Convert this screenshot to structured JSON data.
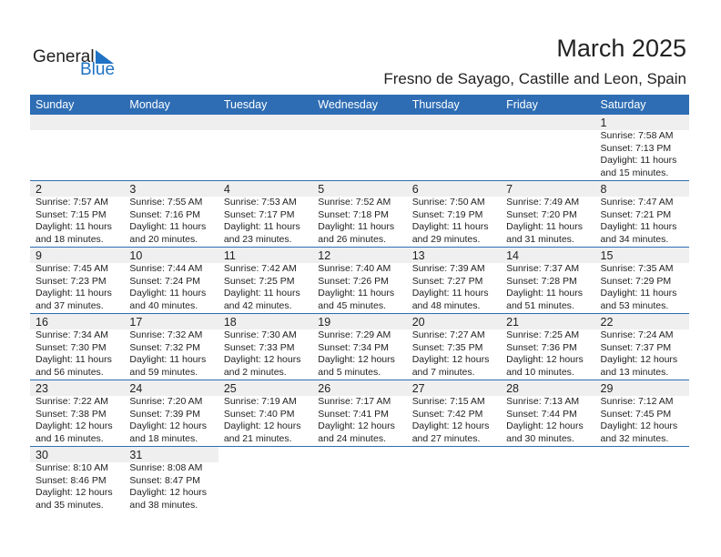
{
  "logo": {
    "text1": "General",
    "text2": "Blue"
  },
  "title": "March 2025",
  "subtitle": "Fresno de Sayago, Castille and Leon, Spain",
  "colors": {
    "header": "#2e6db4",
    "accent": "#1f72c4"
  },
  "days": [
    "Sunday",
    "Monday",
    "Tuesday",
    "Wednesday",
    "Thursday",
    "Friday",
    "Saturday"
  ],
  "weeks": [
    [
      null,
      null,
      null,
      null,
      null,
      null,
      {
        "d": "1",
        "sr": "Sunrise: 7:58 AM",
        "ss": "Sunset: 7:13 PM",
        "dl": "Daylight: 11 hours",
        "dm": "and 15 minutes."
      }
    ],
    [
      {
        "d": "2",
        "sr": "Sunrise: 7:57 AM",
        "ss": "Sunset: 7:15 PM",
        "dl": "Daylight: 11 hours",
        "dm": "and 18 minutes."
      },
      {
        "d": "3",
        "sr": "Sunrise: 7:55 AM",
        "ss": "Sunset: 7:16 PM",
        "dl": "Daylight: 11 hours",
        "dm": "and 20 minutes."
      },
      {
        "d": "4",
        "sr": "Sunrise: 7:53 AM",
        "ss": "Sunset: 7:17 PM",
        "dl": "Daylight: 11 hours",
        "dm": "and 23 minutes."
      },
      {
        "d": "5",
        "sr": "Sunrise: 7:52 AM",
        "ss": "Sunset: 7:18 PM",
        "dl": "Daylight: 11 hours",
        "dm": "and 26 minutes."
      },
      {
        "d": "6",
        "sr": "Sunrise: 7:50 AM",
        "ss": "Sunset: 7:19 PM",
        "dl": "Daylight: 11 hours",
        "dm": "and 29 minutes."
      },
      {
        "d": "7",
        "sr": "Sunrise: 7:49 AM",
        "ss": "Sunset: 7:20 PM",
        "dl": "Daylight: 11 hours",
        "dm": "and 31 minutes."
      },
      {
        "d": "8",
        "sr": "Sunrise: 7:47 AM",
        "ss": "Sunset: 7:21 PM",
        "dl": "Daylight: 11 hours",
        "dm": "and 34 minutes."
      }
    ],
    [
      {
        "d": "9",
        "sr": "Sunrise: 7:45 AM",
        "ss": "Sunset: 7:23 PM",
        "dl": "Daylight: 11 hours",
        "dm": "and 37 minutes."
      },
      {
        "d": "10",
        "sr": "Sunrise: 7:44 AM",
        "ss": "Sunset: 7:24 PM",
        "dl": "Daylight: 11 hours",
        "dm": "and 40 minutes."
      },
      {
        "d": "11",
        "sr": "Sunrise: 7:42 AM",
        "ss": "Sunset: 7:25 PM",
        "dl": "Daylight: 11 hours",
        "dm": "and 42 minutes."
      },
      {
        "d": "12",
        "sr": "Sunrise: 7:40 AM",
        "ss": "Sunset: 7:26 PM",
        "dl": "Daylight: 11 hours",
        "dm": "and 45 minutes."
      },
      {
        "d": "13",
        "sr": "Sunrise: 7:39 AM",
        "ss": "Sunset: 7:27 PM",
        "dl": "Daylight: 11 hours",
        "dm": "and 48 minutes."
      },
      {
        "d": "14",
        "sr": "Sunrise: 7:37 AM",
        "ss": "Sunset: 7:28 PM",
        "dl": "Daylight: 11 hours",
        "dm": "and 51 minutes."
      },
      {
        "d": "15",
        "sr": "Sunrise: 7:35 AM",
        "ss": "Sunset: 7:29 PM",
        "dl": "Daylight: 11 hours",
        "dm": "and 53 minutes."
      }
    ],
    [
      {
        "d": "16",
        "sr": "Sunrise: 7:34 AM",
        "ss": "Sunset: 7:30 PM",
        "dl": "Daylight: 11 hours",
        "dm": "and 56 minutes."
      },
      {
        "d": "17",
        "sr": "Sunrise: 7:32 AM",
        "ss": "Sunset: 7:32 PM",
        "dl": "Daylight: 11 hours",
        "dm": "and 59 minutes."
      },
      {
        "d": "18",
        "sr": "Sunrise: 7:30 AM",
        "ss": "Sunset: 7:33 PM",
        "dl": "Daylight: 12 hours",
        "dm": "and 2 minutes."
      },
      {
        "d": "19",
        "sr": "Sunrise: 7:29 AM",
        "ss": "Sunset: 7:34 PM",
        "dl": "Daylight: 12 hours",
        "dm": "and 5 minutes."
      },
      {
        "d": "20",
        "sr": "Sunrise: 7:27 AM",
        "ss": "Sunset: 7:35 PM",
        "dl": "Daylight: 12 hours",
        "dm": "and 7 minutes."
      },
      {
        "d": "21",
        "sr": "Sunrise: 7:25 AM",
        "ss": "Sunset: 7:36 PM",
        "dl": "Daylight: 12 hours",
        "dm": "and 10 minutes."
      },
      {
        "d": "22",
        "sr": "Sunrise: 7:24 AM",
        "ss": "Sunset: 7:37 PM",
        "dl": "Daylight: 12 hours",
        "dm": "and 13 minutes."
      }
    ],
    [
      {
        "d": "23",
        "sr": "Sunrise: 7:22 AM",
        "ss": "Sunset: 7:38 PM",
        "dl": "Daylight: 12 hours",
        "dm": "and 16 minutes."
      },
      {
        "d": "24",
        "sr": "Sunrise: 7:20 AM",
        "ss": "Sunset: 7:39 PM",
        "dl": "Daylight: 12 hours",
        "dm": "and 18 minutes."
      },
      {
        "d": "25",
        "sr": "Sunrise: 7:19 AM",
        "ss": "Sunset: 7:40 PM",
        "dl": "Daylight: 12 hours",
        "dm": "and 21 minutes."
      },
      {
        "d": "26",
        "sr": "Sunrise: 7:17 AM",
        "ss": "Sunset: 7:41 PM",
        "dl": "Daylight: 12 hours",
        "dm": "and 24 minutes."
      },
      {
        "d": "27",
        "sr": "Sunrise: 7:15 AM",
        "ss": "Sunset: 7:42 PM",
        "dl": "Daylight: 12 hours",
        "dm": "and 27 minutes."
      },
      {
        "d": "28",
        "sr": "Sunrise: 7:13 AM",
        "ss": "Sunset: 7:44 PM",
        "dl": "Daylight: 12 hours",
        "dm": "and 30 minutes."
      },
      {
        "d": "29",
        "sr": "Sunrise: 7:12 AM",
        "ss": "Sunset: 7:45 PM",
        "dl": "Daylight: 12 hours",
        "dm": "and 32 minutes."
      }
    ],
    [
      {
        "d": "30",
        "sr": "Sunrise: 8:10 AM",
        "ss": "Sunset: 8:46 PM",
        "dl": "Daylight: 12 hours",
        "dm": "and 35 minutes."
      },
      {
        "d": "31",
        "sr": "Sunrise: 8:08 AM",
        "ss": "Sunset: 8:47 PM",
        "dl": "Daylight: 12 hours",
        "dm": "and 38 minutes."
      },
      null,
      null,
      null,
      null,
      null
    ]
  ]
}
